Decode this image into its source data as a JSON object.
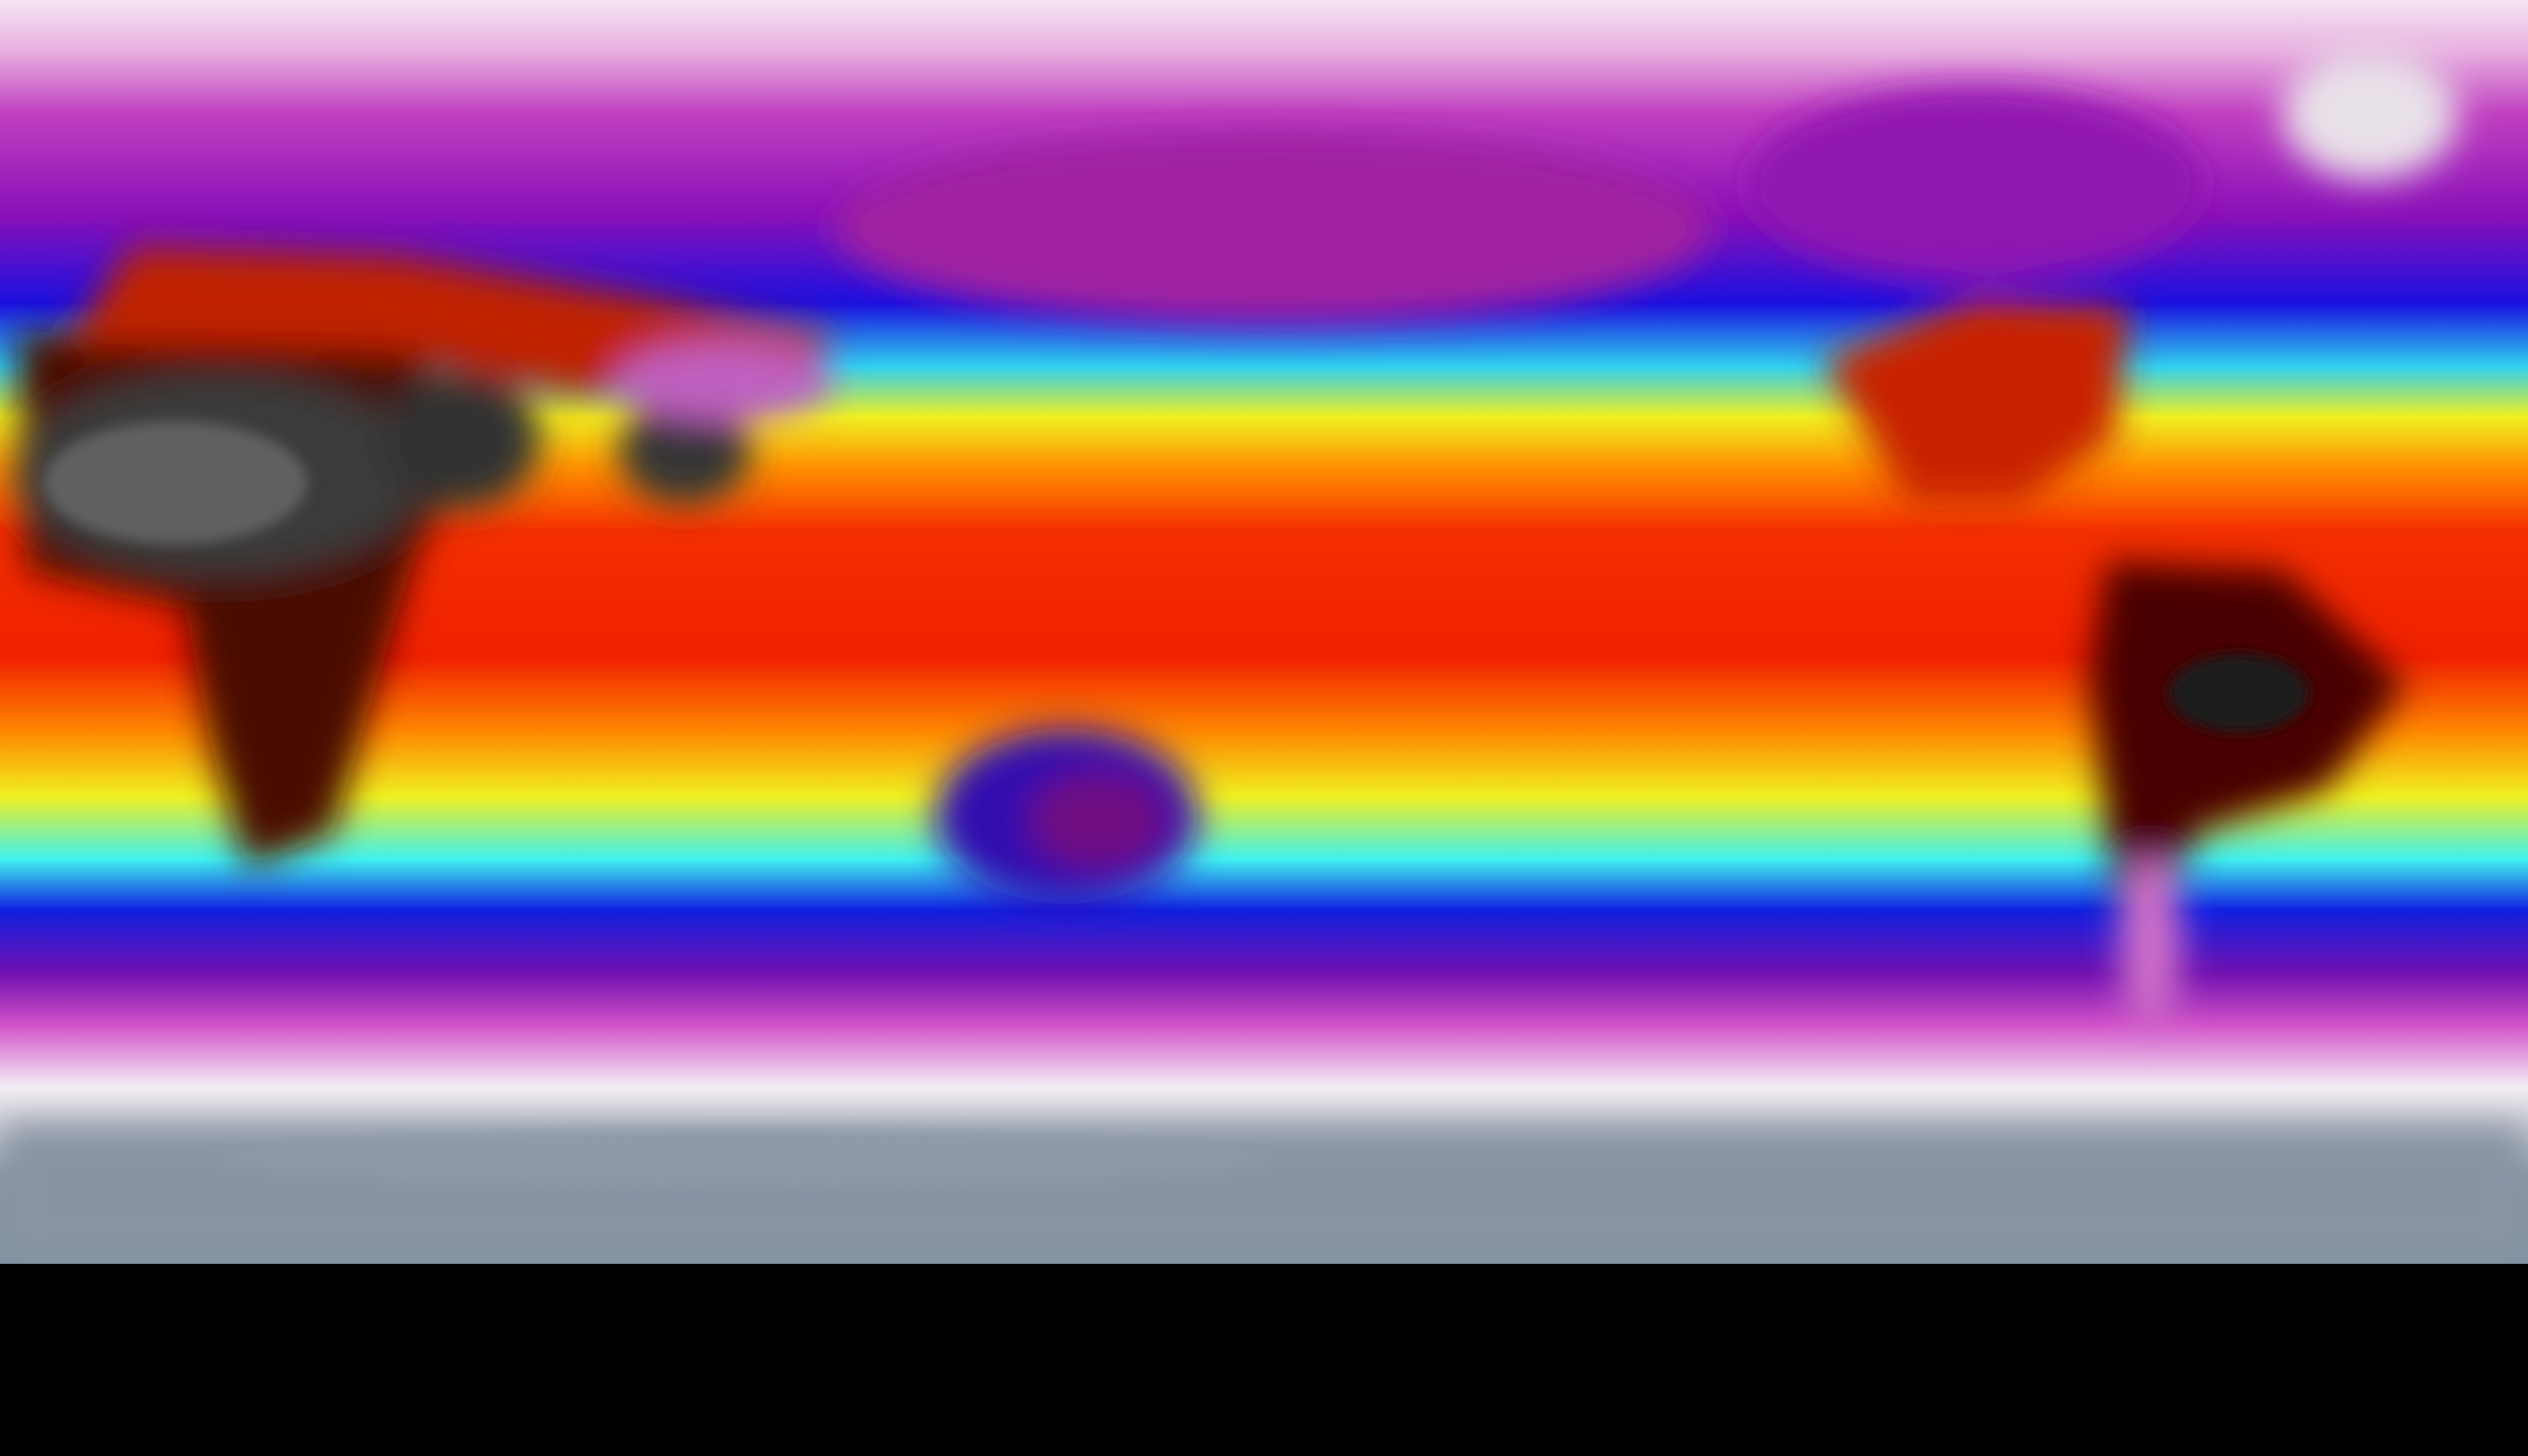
{
  "map": {
    "projection": "equirectangular",
    "colorscale": [
      "#8a96a6",
      "#f4eef4",
      "#d050c8",
      "#7a10b0",
      "#1010e0",
      "#30f0f0",
      "#f0f020",
      "#ff9000",
      "#f02000",
      "#500000",
      "#303030"
    ]
  }
}
